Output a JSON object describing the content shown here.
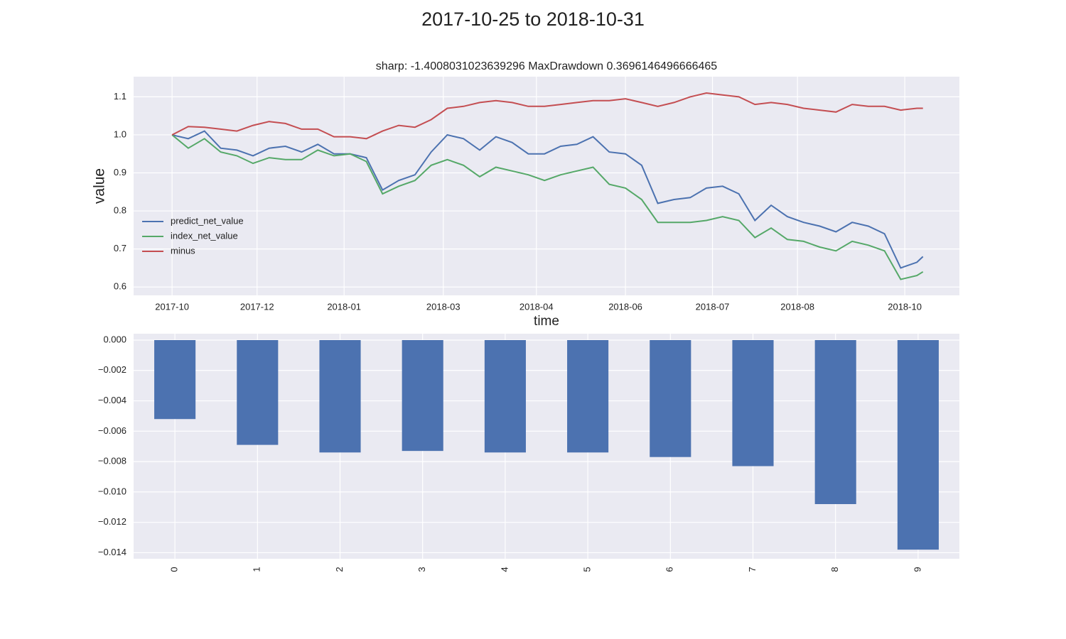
{
  "title": "2017-10-25 to 2018-10-31",
  "chart_data": [
    {
      "type": "line",
      "title": "sharp: -1.4008031023639296 MaxDrawdown 0.3696146496666465",
      "x_label": "time",
      "y_label": "value",
      "x": [
        "2017-10-25",
        "2017-11-02",
        "2017-11-10",
        "2017-11-18",
        "2017-11-26",
        "2017-12-04",
        "2017-12-12",
        "2017-12-20",
        "2017-12-28",
        "2018-01-05",
        "2018-01-13",
        "2018-01-21",
        "2018-01-29",
        "2018-02-06",
        "2018-02-14",
        "2018-02-22",
        "2018-03-02",
        "2018-03-10",
        "2018-03-18",
        "2018-03-26",
        "2018-04-03",
        "2018-04-11",
        "2018-04-19",
        "2018-04-27",
        "2018-05-05",
        "2018-05-13",
        "2018-05-21",
        "2018-05-29",
        "2018-06-06",
        "2018-06-14",
        "2018-06-22",
        "2018-06-30",
        "2018-07-08",
        "2018-07-16",
        "2018-07-24",
        "2018-08-01",
        "2018-08-09",
        "2018-08-17",
        "2018-08-25",
        "2018-09-02",
        "2018-09-10",
        "2018-09-18",
        "2018-09-26",
        "2018-10-04",
        "2018-10-12",
        "2018-10-20",
        "2018-10-28",
        "2018-10-31"
      ],
      "series": [
        {
          "name": "predict_net_value",
          "color": "#4c72b0",
          "values": [
            1.0,
            0.99,
            1.01,
            0.965,
            0.96,
            0.945,
            0.965,
            0.97,
            0.955,
            0.975,
            0.95,
            0.95,
            0.94,
            0.855,
            0.88,
            0.895,
            0.955,
            1.0,
            0.99,
            0.96,
            0.995,
            0.98,
            0.95,
            0.95,
            0.97,
            0.975,
            0.995,
            0.955,
            0.95,
            0.92,
            0.82,
            0.83,
            0.835,
            0.86,
            0.865,
            0.845,
            0.775,
            0.815,
            0.785,
            0.77,
            0.76,
            0.745,
            0.77,
            0.76,
            0.74,
            0.65,
            0.665,
            0.68
          ]
        },
        {
          "name": "index_net_value",
          "color": "#55a868",
          "values": [
            1.0,
            0.965,
            0.99,
            0.955,
            0.945,
            0.925,
            0.94,
            0.935,
            0.935,
            0.96,
            0.945,
            0.95,
            0.93,
            0.845,
            0.865,
            0.88,
            0.92,
            0.935,
            0.92,
            0.89,
            0.915,
            0.905,
            0.895,
            0.88,
            0.895,
            0.905,
            0.915,
            0.87,
            0.86,
            0.83,
            0.77,
            0.77,
            0.77,
            0.775,
            0.785,
            0.775,
            0.73,
            0.755,
            0.725,
            0.72,
            0.705,
            0.695,
            0.72,
            0.71,
            0.695,
            0.62,
            0.63,
            0.64
          ]
        },
        {
          "name": "minus",
          "color": "#c44e52",
          "values": [
            1.0,
            1.022,
            1.02,
            1.015,
            1.01,
            1.025,
            1.035,
            1.03,
            1.015,
            1.015,
            0.995,
            0.995,
            0.99,
            1.01,
            1.025,
            1.02,
            1.04,
            1.07,
            1.075,
            1.085,
            1.09,
            1.085,
            1.075,
            1.075,
            1.08,
            1.085,
            1.09,
            1.09,
            1.095,
            1.085,
            1.075,
            1.085,
            1.1,
            1.11,
            1.105,
            1.1,
            1.08,
            1.085,
            1.08,
            1.07,
            1.065,
            1.06,
            1.08,
            1.075,
            1.075,
            1.065,
            1.07,
            1.07
          ]
        }
      ],
      "xlim": [
        "2017-10-06",
        "2018-11-18"
      ],
      "xticks": [
        {
          "value": "2017-10-25",
          "label": "2017-10"
        },
        {
          "value": "2017-12-06",
          "label": "2017-12"
        },
        {
          "value": "2018-01-18",
          "label": "2018-01"
        },
        {
          "value": "2018-03-08",
          "label": "2018-03"
        },
        {
          "value": "2018-04-23",
          "label": "2018-04"
        },
        {
          "value": "2018-06-06",
          "label": "2018-06"
        },
        {
          "value": "2018-07-19",
          "label": "2018-07"
        },
        {
          "value": "2018-08-30",
          "label": "2018-08"
        },
        {
          "value": "2018-10-22",
          "label": "2018-10"
        }
      ],
      "ylim": [
        0.578,
        1.153
      ],
      "yticks": [
        0.6,
        0.7,
        0.8,
        0.9,
        {
          "value": 1,
          "label": "1.0"
        },
        1.1
      ],
      "grid": true,
      "legend": "lower left"
    },
    {
      "type": "bar",
      "categories": [
        "0",
        "1",
        "2",
        "3",
        "4",
        "5",
        "6",
        "7",
        "8",
        "9"
      ],
      "values": [
        -0.0052,
        -0.0069,
        -0.0074,
        -0.0073,
        -0.0074,
        -0.0074,
        -0.0077,
        -0.0083,
        -0.0108,
        -0.0138
      ],
      "color": "#4c72b0",
      "ylim": [
        -0.0144,
        0
      ],
      "yticks": [
        {
          "value": 0,
          "label": "0.000"
        },
        {
          "value": -0.002,
          "label": "−0.002"
        },
        {
          "value": -0.004,
          "label": "−0.004"
        },
        {
          "value": -0.006,
          "label": "−0.006"
        },
        {
          "value": -0.008,
          "label": "−0.008"
        },
        {
          "value": -0.01,
          "label": "−0.010"
        },
        {
          "value": -0.012,
          "label": "−0.012"
        },
        {
          "value": -0.014,
          "label": "−0.014"
        }
      ],
      "grid": true
    }
  ]
}
